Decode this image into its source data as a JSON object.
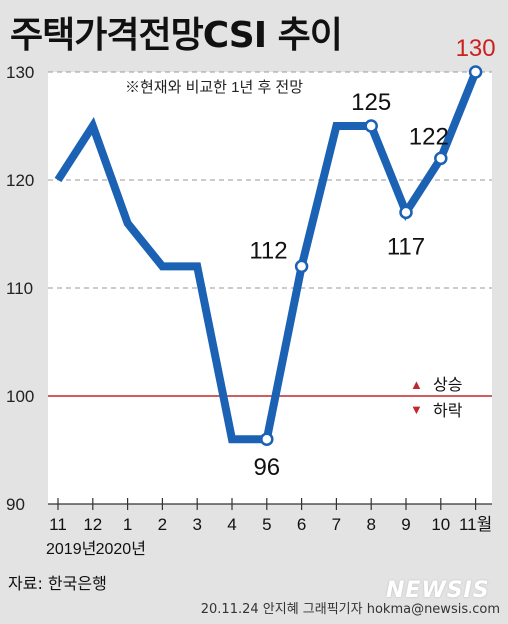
{
  "title": "주택가격전망CSI 추이",
  "note": "※현재와 비교한 1년 후 전망",
  "source": "자료: 한국은행",
  "credit": "20.11.24 안지혜 그래픽기자 hokma@newsis.com",
  "watermark": "NEWSIS",
  "legend": {
    "up": "상승",
    "down": "하락"
  },
  "years": [
    "2019년",
    "2020년"
  ],
  "colors": {
    "line": "#1b62b4",
    "highlight": "#cc1f1f",
    "baseline": "#c0282d"
  },
  "chart_data": {
    "type": "line",
    "categories": [
      "11",
      "12",
      "1",
      "2",
      "3",
      "4",
      "5",
      "6",
      "7",
      "8",
      "9",
      "10",
      "11월"
    ],
    "values": [
      120,
      125,
      116,
      112,
      112,
      96,
      96,
      112,
      125,
      125,
      117,
      122,
      130
    ],
    "labeled": [
      {
        "index": 6,
        "text": "96"
      },
      {
        "index": 7,
        "text": "112"
      },
      {
        "index": 9,
        "text": "125"
      },
      {
        "index": 10,
        "text": "117"
      },
      {
        "index": 11,
        "text": "122"
      },
      {
        "index": 12,
        "text": "130"
      }
    ],
    "yticks": [
      "130",
      "120",
      "110",
      "100",
      "90"
    ],
    "ylim": [
      90,
      130
    ],
    "baseline": 100,
    "grid": true
  }
}
